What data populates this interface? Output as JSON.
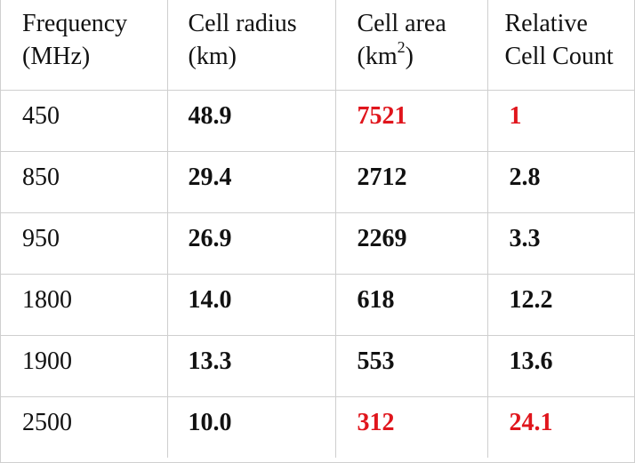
{
  "headers": {
    "frequency": [
      "Frequency",
      "(MHz)"
    ],
    "radius": [
      "Cell radius",
      "(km)"
    ],
    "area_line1": "Cell area",
    "area_line2_prefix": "(km",
    "area_line2_sup": "2",
    "area_line2_suffix": ")",
    "count": [
      "Relative",
      "Cell Count"
    ]
  },
  "rows": [
    {
      "frequency": "450",
      "radius": "48.9",
      "area": "7521",
      "count": "1"
    },
    {
      "frequency": "850",
      "radius": "29.4",
      "area": "2712",
      "count": "2.8"
    },
    {
      "frequency": "950",
      "radius": "26.9",
      "area": "2269",
      "count": "3.3"
    },
    {
      "frequency": "1800",
      "radius": "14.0",
      "area": "618",
      "count": "12.2"
    },
    {
      "frequency": "1900",
      "radius": "13.3",
      "area": "553",
      "count": "13.6"
    },
    {
      "frequency": "2500",
      "radius": "10.0",
      "area": "312",
      "count": "24.1"
    }
  ],
  "highlight_color": "#e0151c"
}
